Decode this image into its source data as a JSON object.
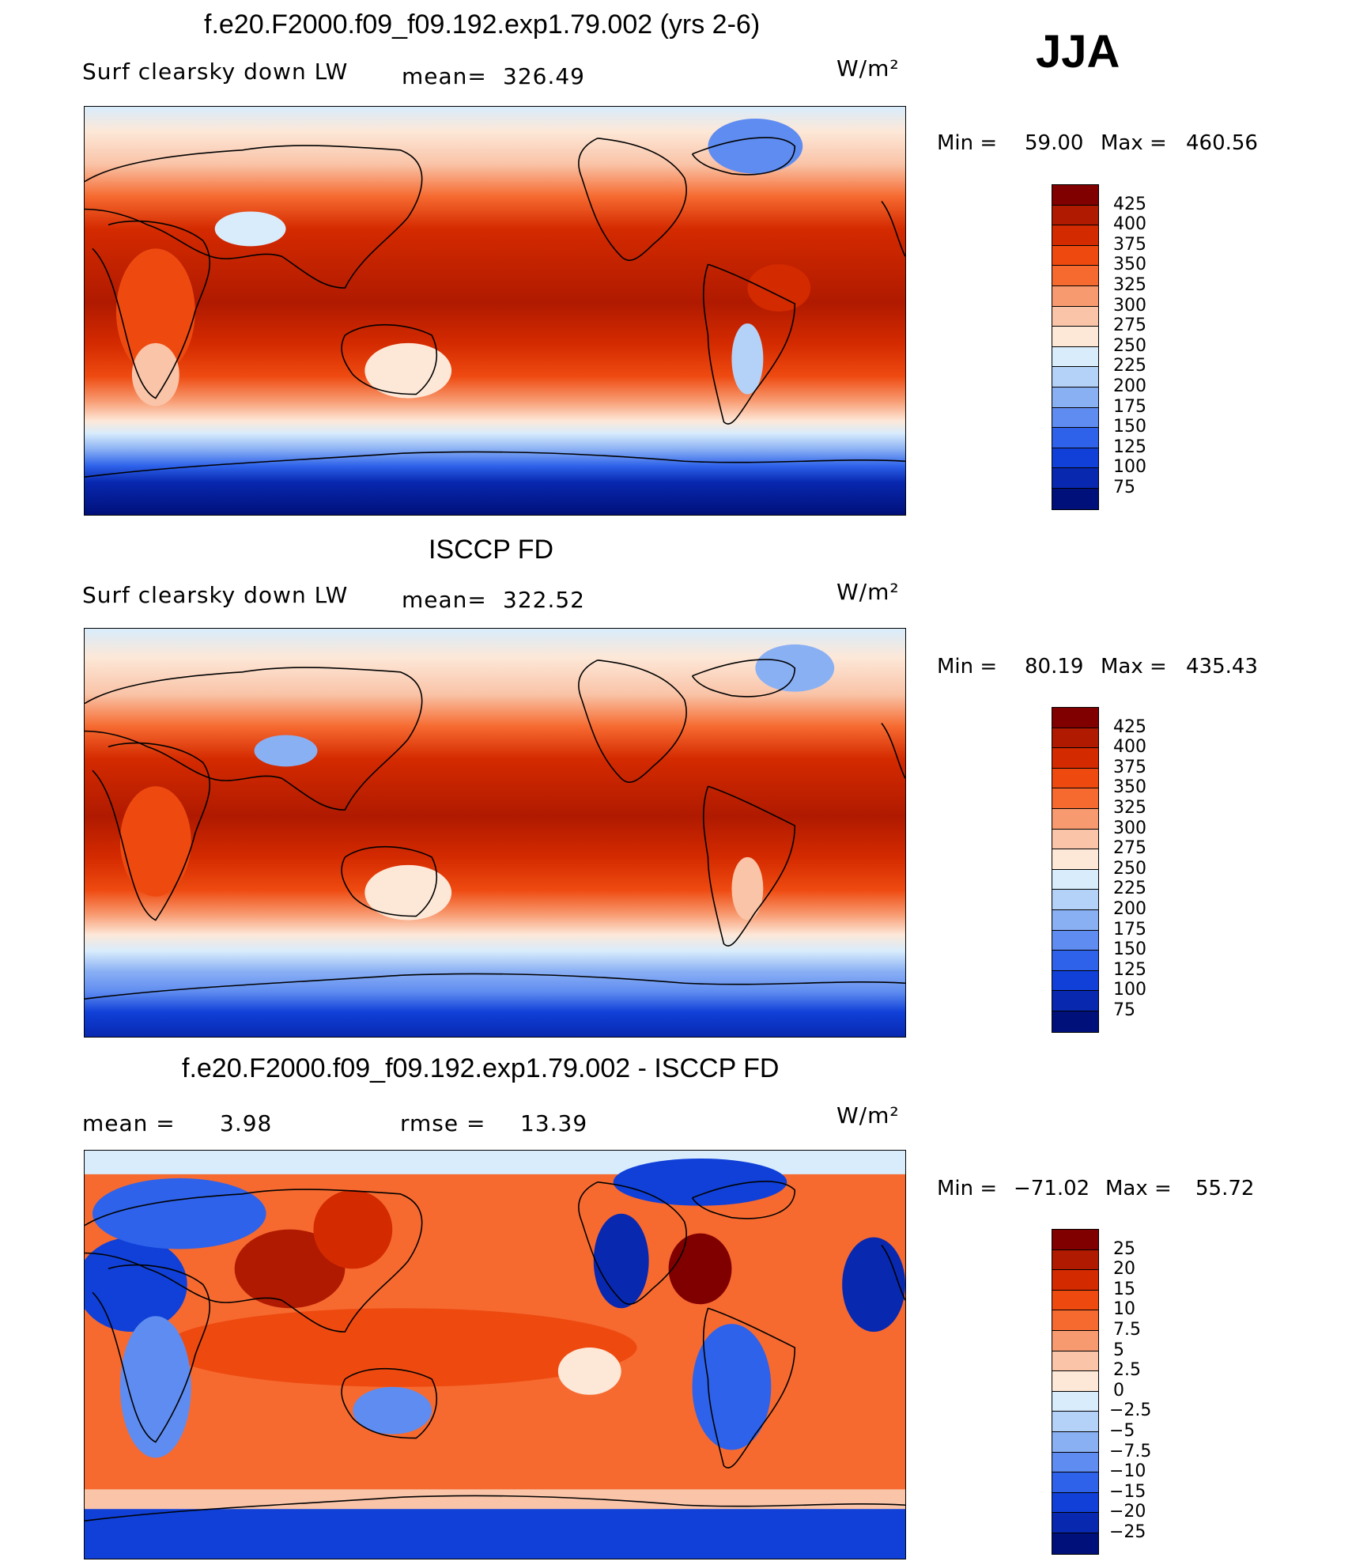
{
  "season": "JJA",
  "panels": [
    {
      "title": "f.e20.F2000.f09_f09.192.exp1.79.002 (yrs 2-6)",
      "variable": "Surf clearsky down LW",
      "stat1_label": "mean=",
      "stat1_value": "326.49",
      "units": "W/m²",
      "min_label": "Min  =",
      "min_value": "59.00",
      "max_label": "Max  =",
      "max_value": "460.56",
      "colorbar_ticks": [
        "425",
        "400",
        "375",
        "350",
        "325",
        "300",
        "275",
        "250",
        "225",
        "200",
        "175",
        "150",
        "125",
        "100",
        "75"
      ]
    },
    {
      "title": "ISCCP FD",
      "variable": "Surf clearsky down LW",
      "stat1_label": "mean=",
      "stat1_value": "322.52",
      "units": "W/m²",
      "min_label": "Min  =",
      "min_value": "80.19",
      "max_label": "Max  =",
      "max_value": "435.43",
      "colorbar_ticks": [
        "425",
        "400",
        "375",
        "350",
        "325",
        "300",
        "275",
        "250",
        "225",
        "200",
        "175",
        "150",
        "125",
        "100",
        "75"
      ]
    },
    {
      "title": "f.e20.F2000.f09_f09.192.exp1.79.002 - ISCCP FD",
      "stat1_label": "mean =",
      "stat1_value": "3.98",
      "stat2_label": "rmse =",
      "stat2_value": "13.39",
      "units": "W/m²",
      "min_label": "Min  =",
      "min_value": "−71.02",
      "max_label": "Max  =",
      "max_value": "55.72",
      "colorbar_ticks": [
        "25",
        "20",
        "15",
        "10",
        "7.5",
        "5",
        "2.5",
        "0",
        "−2.5",
        "−5",
        "−7.5",
        "−10",
        "−15",
        "−20",
        "−25"
      ]
    }
  ],
  "colors": {
    "palette": [
      "#800000",
      "#b01a00",
      "#d42a00",
      "#ee4a10",
      "#f66a30",
      "#f89a70",
      "#f9c4a8",
      "#fde8d8",
      "#d8ecfc",
      "#b4d2f8",
      "#8ab0f4",
      "#5f8cf0",
      "#2e62ea",
      "#1040d8",
      "#0828b0",
      "#00107a"
    ],
    "land_stroke": "#000000"
  }
}
